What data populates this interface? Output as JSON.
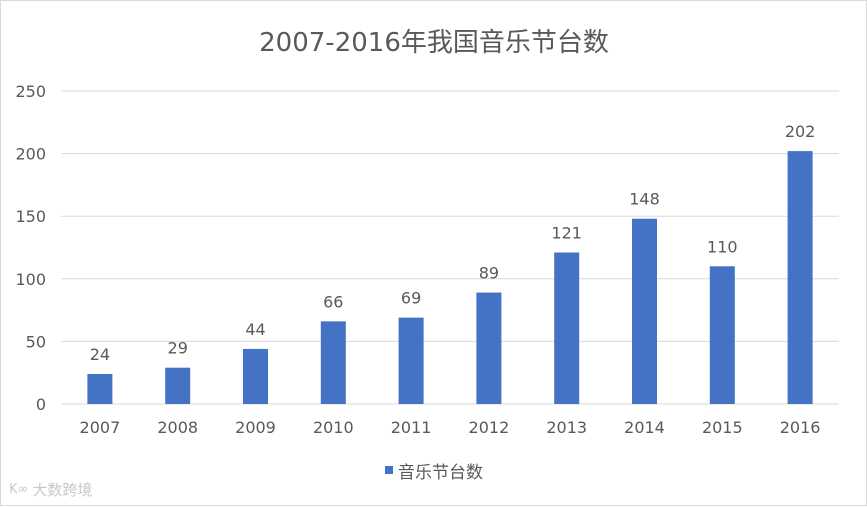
{
  "chart_data": {
    "type": "bar",
    "title": "2007-2016年我国音乐节台数",
    "xlabel": "",
    "ylabel": "",
    "categories": [
      "2007",
      "2008",
      "2009",
      "2010",
      "2011",
      "2012",
      "2013",
      "2014",
      "2015",
      "2016"
    ],
    "series": [
      {
        "name": "音乐节台数",
        "values": [
          24,
          29,
          44,
          66,
          69,
          89,
          121,
          148,
          110,
          202
        ],
        "color": "#4472C4"
      }
    ],
    "ylim": [
      0,
      250
    ],
    "yticks": [
      0,
      50,
      100,
      150,
      200,
      250
    ],
    "grid": true,
    "data_labels": true,
    "legend_position": "bottom"
  },
  "watermark": {
    "text": "大数跨境",
    "logo": "K∞"
  },
  "colors": {
    "bar": "#4472C4",
    "grid": "#d9d9d9",
    "text": "#595959",
    "title": "#595959"
  }
}
